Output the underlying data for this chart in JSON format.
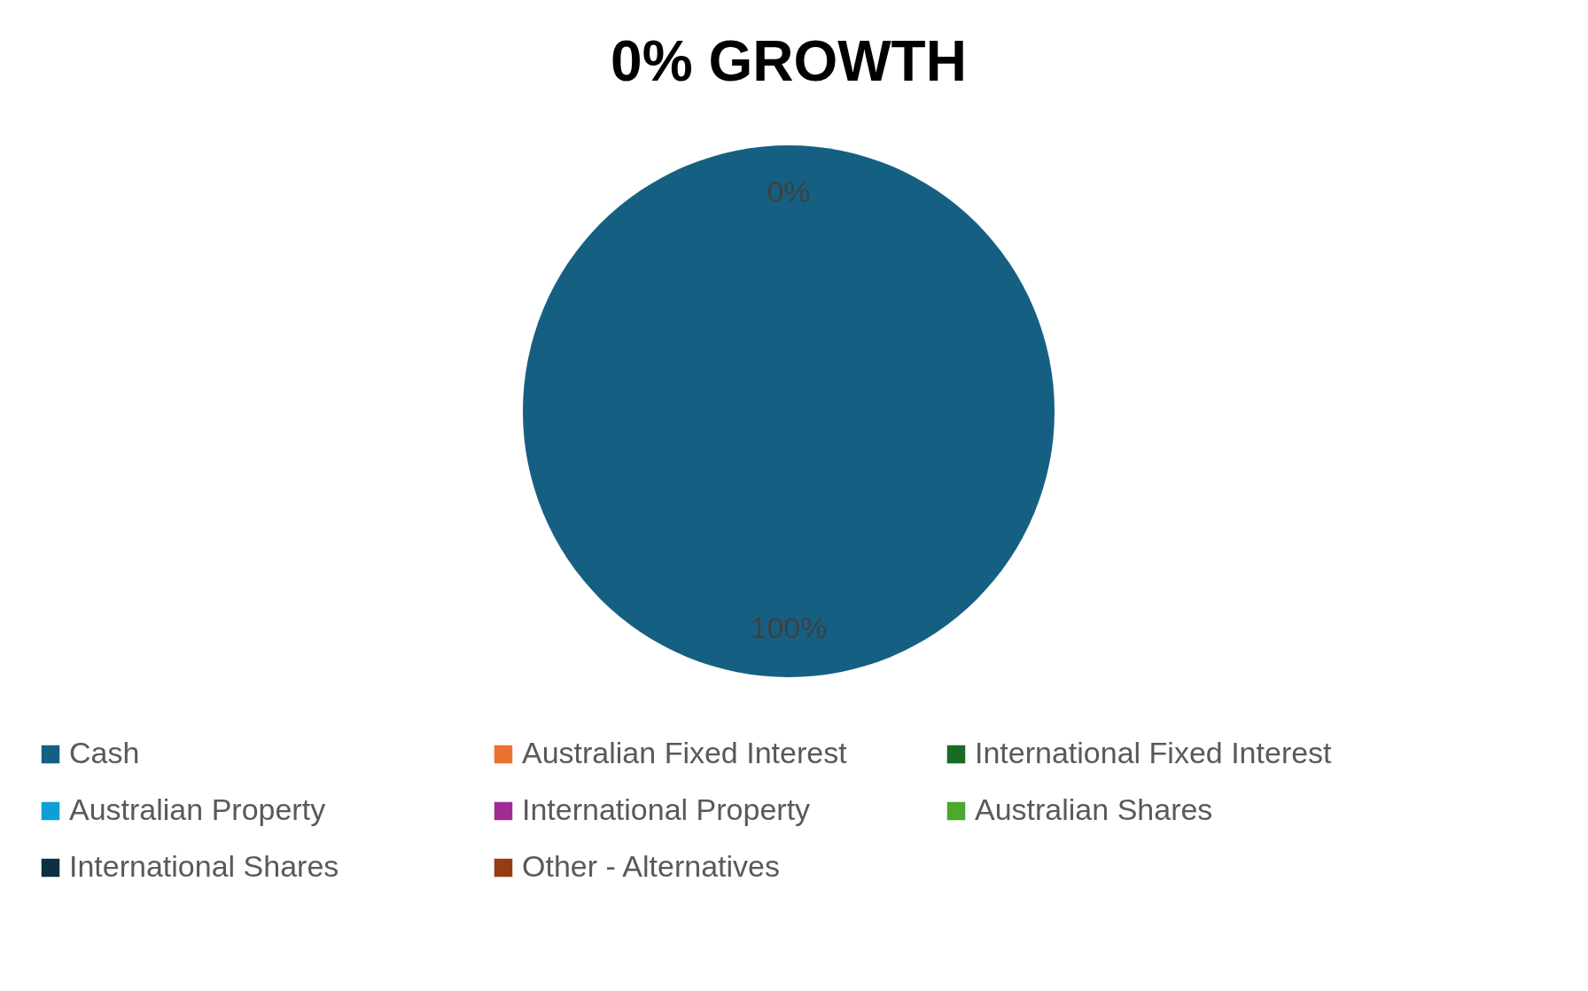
{
  "chart_data": {
    "type": "pie",
    "title": "0% GROWTH",
    "categories": [
      "Cash",
      "Australian Fixed Interest",
      "International Fixed Interest",
      "Australian Property",
      "International Property",
      "Australian Shares",
      "International Shares",
      "Other - Alternatives"
    ],
    "values": [
      100,
      0,
      0,
      0,
      0,
      0,
      0,
      0
    ],
    "colors": [
      "#156082",
      "#e97132",
      "#196b24",
      "#0f9ed5",
      "#a02b93",
      "#4ea72e",
      "#0a3041",
      "#963c10"
    ],
    "value_labels": [
      "100%",
      null,
      null,
      null,
      null,
      null,
      null,
      "0%"
    ],
    "legend": "bottom"
  }
}
